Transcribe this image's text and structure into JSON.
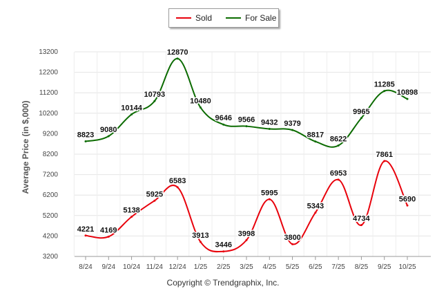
{
  "chart_data": {
    "type": "line",
    "title": "",
    "xlabel": "",
    "ylabel": "Average Price (in $,000)",
    "categories": [
      "8/24",
      "9/24",
      "10/24",
      "11/24",
      "12/24",
      "1/25",
      "2/25",
      "3/25",
      "4/25",
      "5/25",
      "6/25",
      "7/25",
      "8/25",
      "9/25",
      "10/25"
    ],
    "ylim": [
      3200,
      13200
    ],
    "yticks": [
      "3200",
      "4200",
      "5200",
      "6200",
      "7200",
      "8200",
      "9200",
      "10200",
      "11200",
      "12200",
      "13200"
    ],
    "legend_position": "top-center",
    "grid": true,
    "series": [
      {
        "name": "Sold",
        "color": "#e8000b",
        "values": [
          4221,
          4169,
          5138,
          5925,
          6583,
          3913,
          3446,
          3998,
          5995,
          3800,
          5343,
          6953,
          4734,
          7861,
          5690
        ],
        "labels": [
          "4221",
          "4169",
          "5138",
          "5925",
          "6583",
          "3913",
          "3446",
          "3998",
          "5995",
          "3800",
          "5343",
          "6953",
          "4734",
          "7861",
          "5690"
        ]
      },
      {
        "name": "For Sale",
        "color": "#0b6b00",
        "values": [
          8823,
          9080,
          10144,
          10793,
          12870,
          10480,
          9646,
          9566,
          9432,
          9379,
          8817,
          8622,
          9965,
          11285,
          10898
        ],
        "labels": [
          "8823",
          "9080",
          "10144",
          "10793",
          "12870",
          "10480",
          "9646",
          "9566",
          "9432",
          "9379",
          "8817",
          "8622",
          "9965",
          "11285",
          "10898"
        ]
      }
    ]
  },
  "legend": {
    "sold_label": "Sold",
    "for_sale_label": "For Sale"
  },
  "footer": {
    "copyright": "Copyright © Trendgraphix, Inc."
  }
}
